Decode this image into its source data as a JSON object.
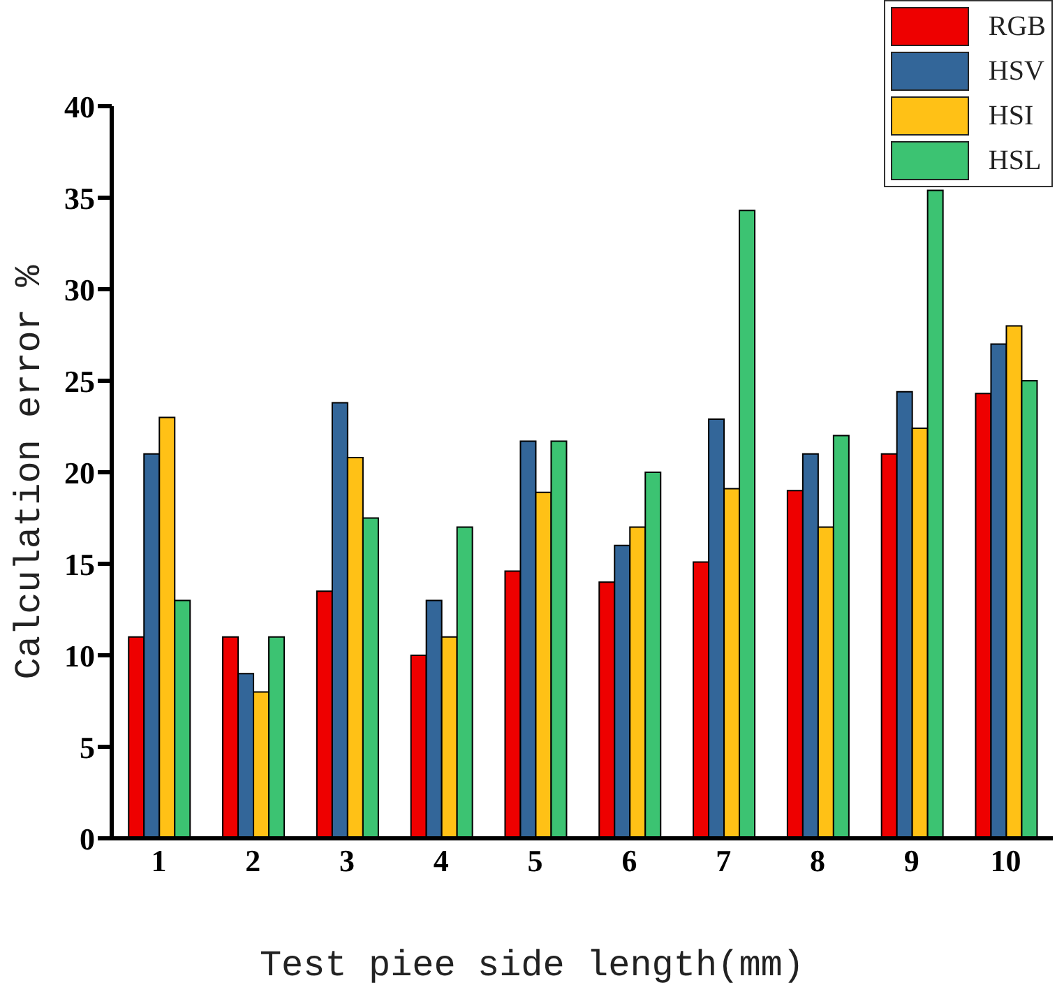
{
  "chart_data": {
    "type": "bar",
    "xlabel": "Test piee side length(mm)",
    "ylabel": "Calculation error %",
    "categories": [
      "1",
      "2",
      "3",
      "4",
      "5",
      "6",
      "7",
      "8",
      "9",
      "10"
    ],
    "series": [
      {
        "name": "RGB",
        "color": "#ee0000",
        "values": [
          11,
          11,
          13.5,
          10,
          14.6,
          14,
          15.1,
          19,
          21,
          24.3
        ]
      },
      {
        "name": "HSV",
        "color": "#336699",
        "values": [
          21,
          9,
          23.8,
          13,
          21.7,
          16,
          22.9,
          21,
          24.4,
          27
        ]
      },
      {
        "name": "HSI",
        "color": "#ffc116",
        "values": [
          23,
          8,
          20.8,
          11,
          18.9,
          17,
          19.1,
          17,
          22.4,
          28
        ]
      },
      {
        "name": "HSL",
        "color": "#3cc372",
        "values": [
          13,
          11,
          17.5,
          17,
          21.7,
          20,
          34.3,
          22,
          35.4,
          25
        ]
      }
    ],
    "ylim": [
      0,
      40
    ],
    "yticks": [
      0,
      5,
      10,
      15,
      20,
      25,
      30,
      35,
      40
    ],
    "grid": false,
    "legend": "top right"
  }
}
